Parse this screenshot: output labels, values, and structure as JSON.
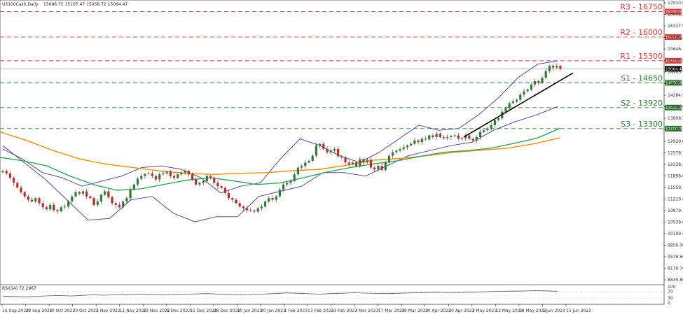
{
  "header": {
    "symbol": "US100Cash,Daily",
    "ohlc": "15086.75 15107.47 15058.72 15064.47"
  },
  "rsi_label": "RSI(14) 72.2967",
  "colors": {
    "support": "#2e7d32",
    "resistance": "#e53935",
    "bull": "#2e7d32",
    "bear": "#c62828",
    "ma_slow": "#ff8c00",
    "ma_fast": "#2eaa5c",
    "bands": "#3a3aa0",
    "price_line": "#000000"
  },
  "chart_data": {
    "type": "candlestick",
    "ylim": [
      8839.8,
      17010
    ],
    "y_ticks": [
      "17010.00",
      "16668.20",
      "16327.90",
      "15986.40",
      "15646.10",
      "15305.80",
      "14965.50",
      "14625.20",
      "14284.90",
      "13944.60",
      "13608.70",
      "13268.30",
      "12929.60",
      "12578.70",
      "12238.30",
      "11898.00",
      "11559.70",
      "11219.40",
      "10879.10",
      "10539.60",
      "10199.40",
      "9859.50",
      "9519.80",
      "9179.70",
      "8839.80"
    ],
    "x_labels": [
      "16 Sep 2022",
      "28 Sep 2022",
      "10 Oct 2022",
      "20 Oct 2022",
      "1 Nov 2022",
      "11 Nov 2022",
      "23 Nov 2022",
      "5 Dec 2022",
      "15 Dec 2022",
      "28 Dec 2022",
      "10 Jan 2023",
      "20 Jan 2023",
      "1 Feb 2023",
      "13 Feb 2023",
      "23 Feb 2023",
      "7 Mar 2023",
      "17 Mar 2023",
      "29 Mar 2023",
      "10 Apr 2023",
      "20 Apr 2023",
      "2 May 2023",
      "12 May 2023",
      "24 May 2023",
      "5 Jun 2023",
      "15 Jun 2023"
    ],
    "levels": [
      {
        "name": "R3 - 16750",
        "value": 16750,
        "kind": "resistance",
        "tag": "16750.00"
      },
      {
        "name": "R2 - 16000",
        "value": 16000,
        "kind": "resistance",
        "tag": "16000.00"
      },
      {
        "name": "R1 - 15300",
        "value": 15300,
        "kind": "resistance",
        "tag": "15300.00"
      },
      {
        "name": "S1 - 14650",
        "value": 14650,
        "kind": "support",
        "tag": "14650.00"
      },
      {
        "name": "S2 - 13920",
        "value": 13920,
        "kind": "support",
        "tag": "13920.00"
      },
      {
        "name": "S3 - 13300",
        "value": 13300,
        "kind": "support",
        "tag": "13300.00"
      }
    ],
    "current_price": {
      "value": 15064.47,
      "tag": "15064.47"
    },
    "close": [
      12050,
      11980,
      11850,
      11700,
      11560,
      11420,
      11300,
      11200,
      11150,
      11250,
      11100,
      10980,
      10920,
      11050,
      10900,
      10860,
      10980,
      11000,
      11150,
      11300,
      11420,
      11380,
      11450,
      11300,
      11250,
      11050,
      11150,
      11350,
      11450,
      11280,
      11100,
      11050,
      10980,
      11150,
      11250,
      11500,
      11650,
      11820,
      11900,
      11960,
      11980,
      11900,
      11800,
      11950,
      11980,
      12030,
      11900,
      11850,
      11950,
      12000,
      12050,
      11950,
      11800,
      11650,
      11700,
      11750,
      11900,
      11850,
      11700,
      11600,
      11550,
      11400,
      11250,
      11200,
      11100,
      11000,
      10950,
      10900,
      10880,
      10850,
      10950,
      11000,
      11150,
      11250,
      11200,
      11300,
      11500,
      11650,
      11700,
      11750,
      11950,
      12150,
      12200,
      12300,
      12350,
      12500,
      12800,
      12850,
      12700,
      12600,
      12650,
      12700,
      12480,
      12450,
      12300,
      12250,
      12300,
      12200,
      12400,
      12300,
      12380,
      12150,
      12100,
      12200,
      12080,
      12300,
      12500,
      12600,
      12650,
      12700,
      12750,
      12800,
      12850,
      12950,
      12900,
      13000,
      12980,
      13100,
      13050,
      13150,
      13050,
      13020,
      13050,
      13080,
      13100,
      13000,
      13020,
      13100,
      13000,
      12950,
      13050,
      13200,
      13250,
      13300,
      13400,
      13550,
      13600,
      13800,
      13900,
      14050,
      14100,
      14150,
      14300,
      14400,
      14450,
      14600,
      14700,
      14650,
      14800,
      15000,
      15150,
      15100,
      15150,
      15064
    ],
    "sma200": [
      13200,
      12950,
      12650,
      12400,
      12250,
      12150,
      12050,
      11980,
      11950,
      11980,
      12000,
      12060,
      12100,
      12220,
      12370,
      12420,
      12500,
      12600,
      12660,
      12720,
      12850,
      13030
    ],
    "sma50": [
      12450,
      12350,
      12200,
      11900,
      11650,
      11480,
      11520,
      11650,
      11780,
      11850,
      11760,
      11650,
      11700,
      11850,
      12020,
      12150,
      12260,
      12350,
      12480,
      12600,
      12650,
      12720,
      12860,
      13020,
      13310
    ],
    "bb_upper": [
      12700,
      12400,
      12000,
      11850,
      11600,
      11750,
      11900,
      12150,
      12200,
      12100,
      11850,
      11400,
      11600,
      11700,
      12400,
      13000,
      12800,
      12500,
      12300,
      12600,
      13000,
      13400,
      13250,
      13300,
      13700,
      14200,
      14800,
      15200,
      15300
    ],
    "bb_lower": [
      12800,
      12300,
      11800,
      11200,
      10600,
      10650,
      11200,
      11300,
      10800,
      10550,
      10700,
      10700,
      11300,
      11450,
      11600,
      12000,
      12000,
      11900,
      12200,
      12500,
      12650,
      12800,
      12900,
      13250,
      13500,
      13700,
      13950
    ],
    "trendline": [
      [
        13050,
        12900
      ],
      [
        14990,
        14940
      ]
    ],
    "rsi": {
      "ylim": [
        0,
        100
      ],
      "levels": [
        70,
        30
      ],
      "ticks": [
        "100",
        "70",
        "30",
        "0"
      ],
      "values": [
        42,
        40,
        38,
        41,
        44,
        46,
        43,
        47,
        50,
        48,
        52,
        51,
        55,
        53,
        50,
        52,
        54,
        56,
        58,
        55,
        53,
        50,
        52,
        55,
        58,
        62,
        60,
        57,
        55,
        58,
        60,
        63,
        61,
        59,
        58,
        60,
        62,
        64,
        66,
        65,
        63,
        66,
        68,
        70,
        72,
        73,
        74,
        76,
        75,
        72
      ]
    }
  }
}
